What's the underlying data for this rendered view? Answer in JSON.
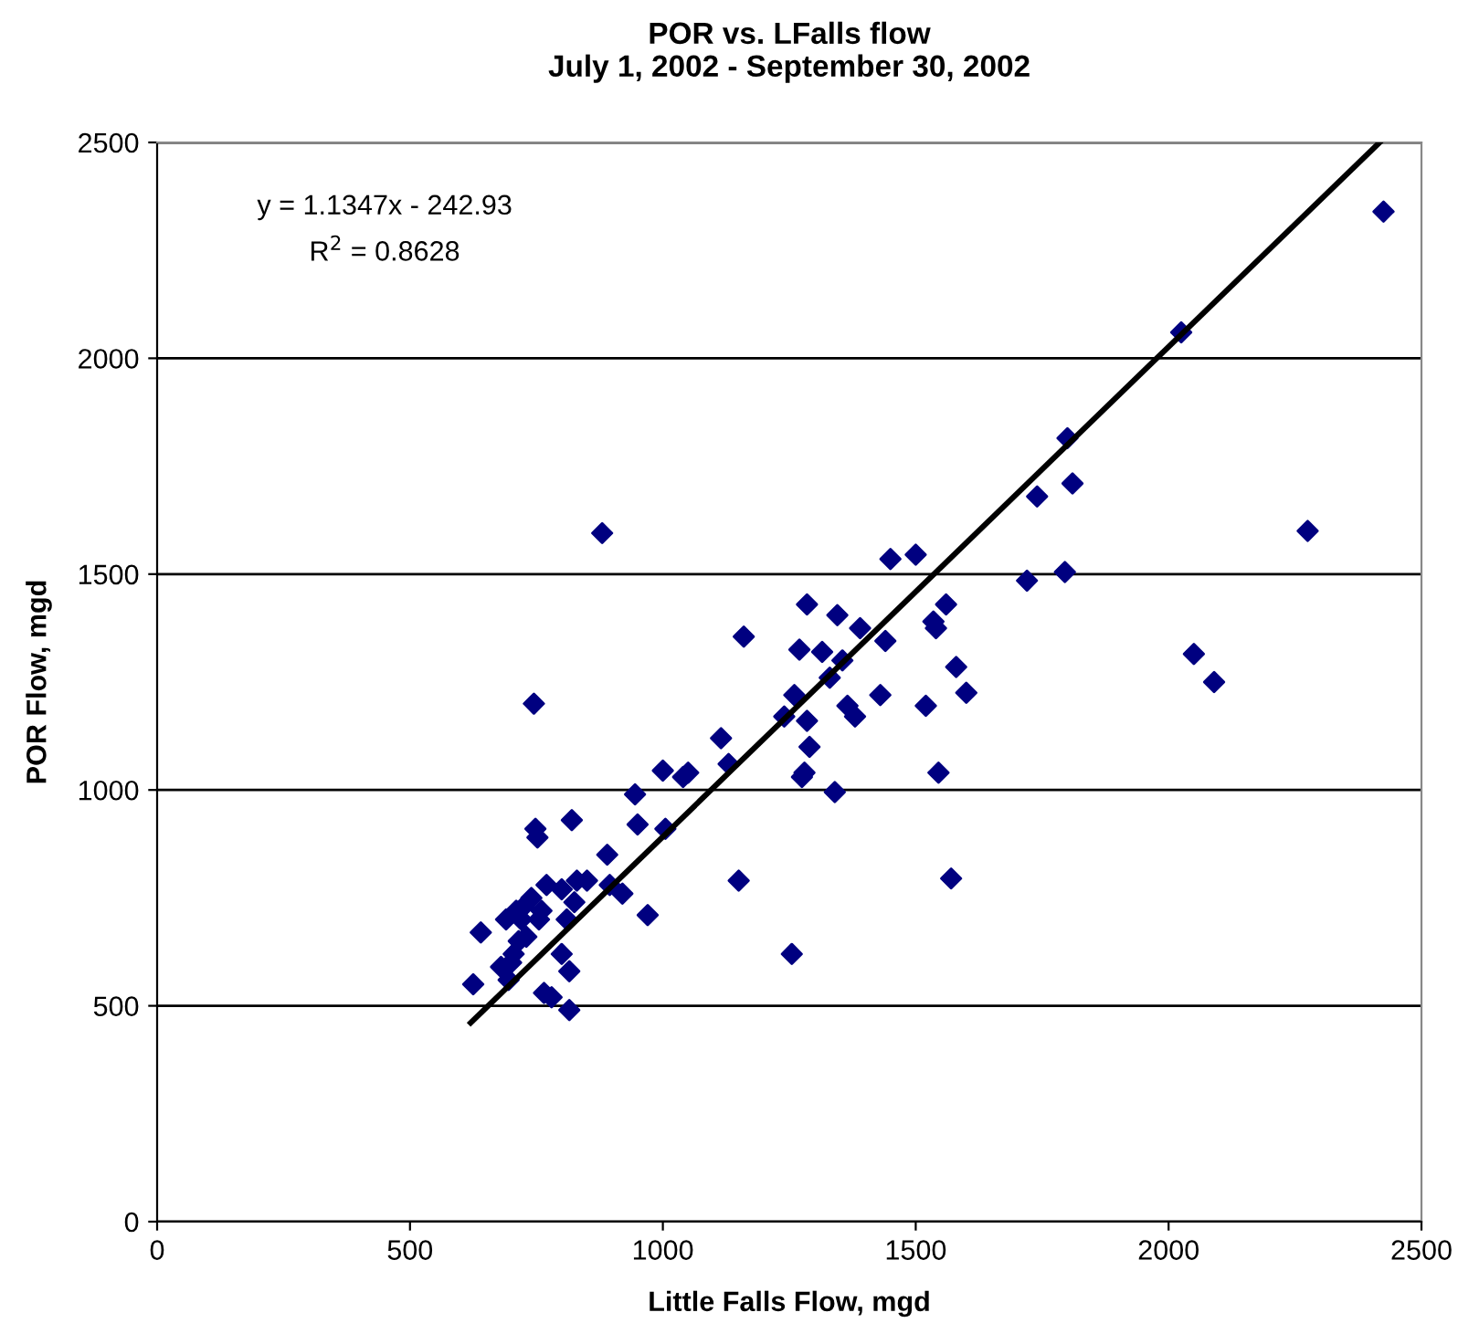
{
  "chart_data": {
    "type": "scatter",
    "title": "POR vs. LFalls flow\nJuly 1, 2002 - September 30, 2002",
    "xlabel": "Little Falls Flow, mgd",
    "ylabel": "POR Flow, mgd",
    "annotations": [
      "y = 1.1347x - 242.93",
      "R$^{2}$ = 0.8628"
    ],
    "xlim": [
      0,
      2500
    ],
    "ylim": [
      0,
      2500
    ],
    "xticks": [
      0,
      500,
      1000,
      1500,
      2000,
      2500
    ],
    "yticks": [
      0,
      500,
      1000,
      1500,
      2000,
      2500
    ],
    "grid": "y",
    "legend": false,
    "marker": "diamond",
    "series": [
      {
        "color": "#000080",
        "x": [
          625,
          640,
          680,
          690,
          695,
          700,
          705,
          710,
          715,
          720,
          725,
          730,
          740,
          745,
          748,
          752,
          755,
          760,
          765,
          770,
          780,
          800,
          800,
          810,
          815,
          815,
          820,
          825,
          830,
          850,
          880,
          890,
          895,
          920,
          945,
          950,
          970,
          1000,
          1005,
          1040,
          1050,
          1115,
          1130,
          1150,
          1160,
          1240,
          1255,
          1260,
          1270,
          1275,
          1280,
          1285,
          1285,
          1290,
          1315,
          1330,
          1340,
          1345,
          1355,
          1365,
          1380,
          1390,
          1430,
          1440,
          1450,
          1500,
          1520,
          1535,
          1540,
          1545,
          1560,
          1570,
          1580,
          1600,
          1720,
          1740,
          1795,
          1800,
          1810,
          2025,
          2050,
          2090,
          2275,
          2425
        ],
        "values": [
          550,
          670,
          590,
          700,
          560,
          600,
          620,
          720,
          650,
          700,
          730,
          660,
          750,
          1200,
          910,
          890,
          700,
          720,
          530,
          780,
          520,
          620,
          770,
          700,
          490,
          580,
          930,
          740,
          790,
          790,
          1595,
          850,
          780,
          760,
          990,
          920,
          710,
          1045,
          910,
          1030,
          1040,
          1120,
          1060,
          790,
          1355,
          1170,
          620,
          1220,
          1325,
          1030,
          1040,
          1430,
          1160,
          1100,
          1320,
          1260,
          995,
          1405,
          1300,
          1195,
          1170,
          1375,
          1220,
          1345,
          1535,
          1545,
          1195,
          1390,
          1375,
          1040,
          1430,
          795,
          1285,
          1225,
          1485,
          1680,
          1505,
          1815,
          1710,
          2060,
          1315,
          1250,
          1600,
          2340
        ]
      },
      {
        "type": "line",
        "color": "#000000",
        "marker": "none",
        "line_style": "solid",
        "x": [
          620,
          2417
        ],
        "values": [
          460.6,
          2499.7
        ]
      }
    ]
  }
}
